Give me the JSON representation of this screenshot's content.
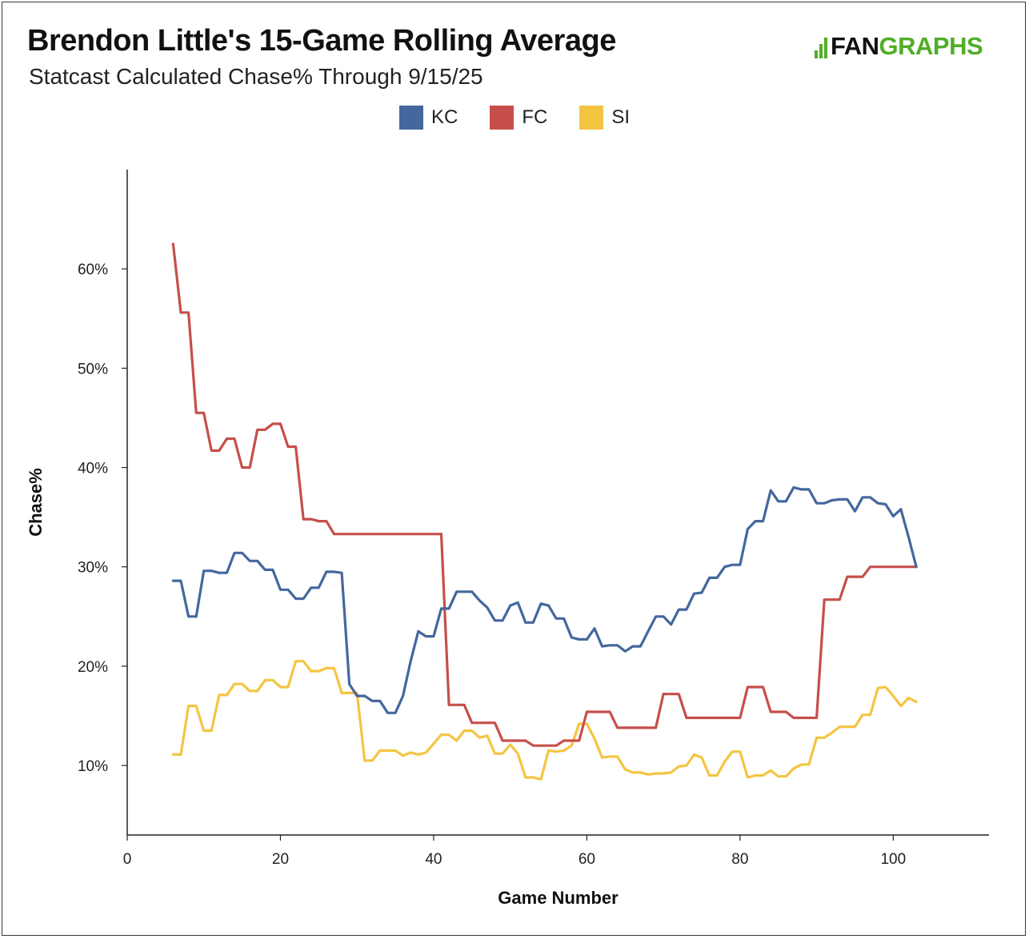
{
  "header": {
    "title": "Brendon Little's 15-Game Rolling Average",
    "subtitle": "Statcast Calculated Chase% Through 9/15/25",
    "logo_fan": "FAN",
    "logo_graphs": "GRAPHS"
  },
  "colors": {
    "KC": "#44679e",
    "FC": "#c64f4b",
    "SI": "#f4c542",
    "logo_green": "#50ae26"
  },
  "chart_data": {
    "type": "line",
    "title": "Brendon Little's 15-Game Rolling Average",
    "subtitle": "Statcast Calculated Chase% Through 9/15/25",
    "xlabel": "Game Number",
    "ylabel": "Chase%",
    "xlim": [
      0,
      112.5
    ],
    "ylim": [
      3,
      70
    ],
    "xticks": [
      0,
      20,
      40,
      60,
      80,
      100
    ],
    "yticks": [
      10,
      20,
      30,
      40,
      50,
      60
    ],
    "ytick_suffix": "%",
    "grid": false,
    "legend_position": "top-center",
    "series": [
      {
        "name": "KC",
        "x": [
          6,
          7,
          8,
          9,
          10,
          11,
          12,
          13,
          14,
          15,
          16,
          17,
          18,
          19,
          20,
          21,
          22,
          23,
          24,
          25,
          26,
          27,
          28,
          29,
          30,
          31,
          32,
          33,
          34,
          35,
          36,
          37,
          38,
          39,
          40,
          41,
          42,
          43,
          44,
          45,
          46,
          47,
          48,
          49,
          50,
          51,
          52,
          53,
          54,
          55,
          56,
          57,
          58,
          59,
          60,
          61,
          62,
          63,
          64,
          65,
          66,
          67,
          68,
          69,
          70,
          71,
          72,
          73,
          74,
          75,
          76,
          77,
          78,
          79,
          80,
          81,
          82,
          83,
          84,
          85,
          86,
          87,
          88,
          89,
          90,
          91,
          92,
          93,
          94,
          95,
          96,
          97,
          98,
          99,
          100,
          101,
          102,
          103
        ],
        "y": [
          28.6,
          28.6,
          25.0,
          25.0,
          29.6,
          29.6,
          29.4,
          29.4,
          31.4,
          31.4,
          30.6,
          30.6,
          29.7,
          29.7,
          27.7,
          27.7,
          26.8,
          26.8,
          27.9,
          27.9,
          29.5,
          29.5,
          29.4,
          18.2,
          17.0,
          17.0,
          16.5,
          16.5,
          15.3,
          15.3,
          17.0,
          20.5,
          23.5,
          23.0,
          23.0,
          25.8,
          25.8,
          27.5,
          27.5,
          27.5,
          26.6,
          25.9,
          24.6,
          24.6,
          26.1,
          26.4,
          24.4,
          24.4,
          26.3,
          26.1,
          24.8,
          24.8,
          22.9,
          22.7,
          22.7,
          23.8,
          22.0,
          22.1,
          22.1,
          21.5,
          22.0,
          22.0,
          23.5,
          25.0,
          25.0,
          24.2,
          25.7,
          25.7,
          27.3,
          27.4,
          28.9,
          28.9,
          30.0,
          30.2,
          30.2,
          33.8,
          34.6,
          34.6,
          37.7,
          36.6,
          36.6,
          38.0,
          37.8,
          37.8,
          36.4,
          36.4,
          36.7,
          36.8,
          36.8,
          35.6,
          37.0,
          37.0,
          36.4,
          36.3,
          35.1,
          35.8,
          33.0,
          30.0
        ]
      },
      {
        "name": "FC",
        "x": [
          6,
          7,
          8,
          9,
          10,
          11,
          12,
          13,
          14,
          15,
          16,
          17,
          18,
          19,
          20,
          21,
          22,
          23,
          24,
          25,
          26,
          27,
          28,
          29,
          30,
          31,
          32,
          33,
          34,
          35,
          36,
          37,
          38,
          39,
          40,
          41,
          42,
          43,
          44,
          45,
          46,
          47,
          48,
          49,
          50,
          51,
          52,
          53,
          54,
          55,
          56,
          57,
          58,
          59,
          60,
          61,
          62,
          63,
          64,
          65,
          66,
          67,
          68,
          69,
          70,
          71,
          72,
          73,
          74,
          75,
          76,
          77,
          78,
          79,
          80,
          81,
          82,
          83,
          84,
          85,
          86,
          87,
          88,
          89,
          90,
          91,
          92,
          93,
          94,
          95,
          96,
          97,
          98,
          99,
          100,
          101,
          102,
          103
        ],
        "y": [
          62.5,
          55.6,
          55.6,
          45.5,
          45.5,
          41.7,
          41.7,
          42.9,
          42.9,
          40.0,
          40.0,
          43.8,
          43.8,
          44.4,
          44.4,
          42.1,
          42.1,
          34.8,
          34.8,
          34.6,
          34.6,
          33.3,
          33.3,
          33.3,
          33.3,
          33.3,
          33.3,
          33.3,
          33.3,
          33.3,
          33.3,
          33.3,
          33.3,
          33.3,
          33.3,
          33.3,
          16.1,
          16.1,
          16.1,
          14.3,
          14.3,
          14.3,
          14.3,
          12.5,
          12.5,
          12.5,
          12.5,
          12.0,
          12.0,
          12.0,
          12.0,
          12.5,
          12.5,
          12.5,
          15.4,
          15.4,
          15.4,
          15.4,
          13.8,
          13.8,
          13.8,
          13.8,
          13.8,
          13.8,
          17.2,
          17.2,
          17.2,
          14.8,
          14.8,
          14.8,
          14.8,
          14.8,
          14.8,
          14.8,
          14.8,
          17.9,
          17.9,
          17.9,
          15.4,
          15.4,
          15.4,
          14.8,
          14.8,
          14.8,
          14.8,
          26.7,
          26.7,
          26.7,
          29.0,
          29.0,
          29.0,
          30.0,
          30.0,
          30.0,
          30.0,
          30.0,
          30.0,
          30.0
        ]
      },
      {
        "name": "SI",
        "x": [
          6,
          7,
          8,
          9,
          10,
          11,
          12,
          13,
          14,
          15,
          16,
          17,
          18,
          19,
          20,
          21,
          22,
          23,
          24,
          25,
          26,
          27,
          28,
          29,
          30,
          31,
          32,
          33,
          34,
          35,
          36,
          37,
          38,
          39,
          40,
          41,
          42,
          43,
          44,
          45,
          46,
          47,
          48,
          49,
          50,
          51,
          52,
          53,
          54,
          55,
          56,
          57,
          58,
          59,
          60,
          61,
          62,
          63,
          64,
          65,
          66,
          67,
          68,
          69,
          70,
          71,
          72,
          73,
          74,
          75,
          76,
          77,
          78,
          79,
          80,
          81,
          82,
          83,
          84,
          85,
          86,
          87,
          88,
          89,
          90,
          91,
          92,
          93,
          94,
          95,
          96,
          97,
          98,
          99,
          100,
          101,
          102,
          103
        ],
        "y": [
          11.1,
          11.1,
          16.0,
          16.0,
          13.5,
          13.5,
          17.1,
          17.1,
          18.2,
          18.2,
          17.5,
          17.5,
          18.6,
          18.6,
          17.9,
          17.9,
          20.5,
          20.5,
          19.5,
          19.5,
          19.8,
          19.8,
          17.3,
          17.3,
          17.3,
          10.5,
          10.5,
          11.5,
          11.5,
          11.5,
          11.0,
          11.3,
          11.1,
          11.3,
          12.2,
          13.1,
          13.1,
          12.5,
          13.5,
          13.5,
          12.8,
          13.0,
          11.2,
          11.2,
          12.1,
          11.2,
          8.8,
          8.8,
          8.6,
          11.5,
          11.4,
          11.5,
          12.0,
          14.2,
          14.2,
          12.7,
          10.8,
          10.9,
          10.9,
          9.6,
          9.3,
          9.3,
          9.1,
          9.2,
          9.2,
          9.3,
          9.9,
          10.0,
          11.1,
          10.8,
          9.0,
          9.0,
          10.4,
          11.4,
          11.4,
          8.8,
          9.0,
          9.0,
          9.5,
          8.9,
          8.9,
          9.7,
          10.1,
          10.1,
          12.8,
          12.8,
          13.3,
          13.9,
          13.9,
          13.9,
          15.1,
          15.1,
          17.8,
          17.9,
          17.0,
          16.0,
          16.8,
          16.4
        ]
      }
    ]
  }
}
